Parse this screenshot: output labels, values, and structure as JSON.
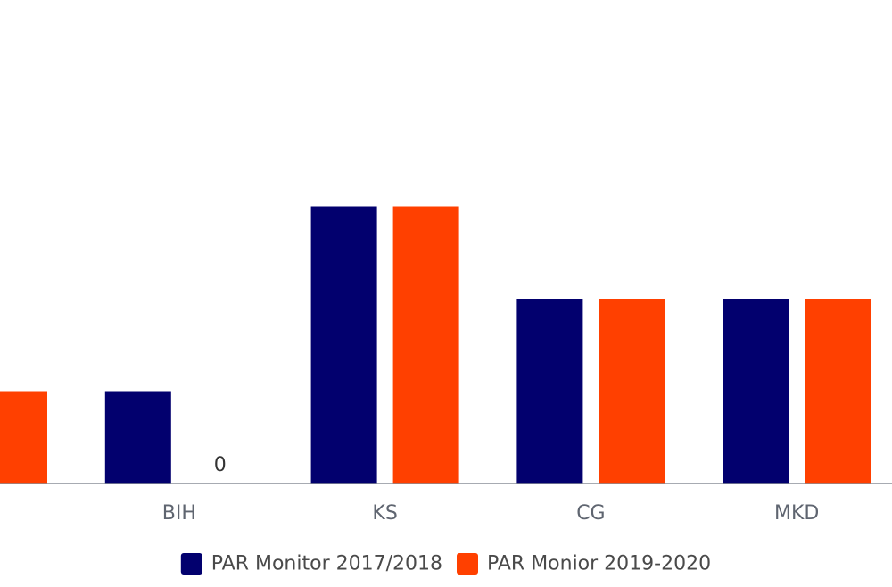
{
  "chart_data": {
    "type": "bar",
    "categories": [
      "",
      "BIH",
      "KS",
      "CG",
      "MKD"
    ],
    "series": [
      {
        "name": "PAR Monitor 2017/2018",
        "color": "#02006e",
        "values": [
          null,
          1,
          3,
          2,
          2
        ]
      },
      {
        "name": "PAR Monior 2019-2020",
        "color": "#ff4000",
        "values": [
          1,
          0,
          3,
          2,
          2
        ]
      }
    ],
    "data_labels": [
      {
        "series": 1,
        "category": 1,
        "text": "0"
      }
    ],
    "ylim": [
      0,
      5
    ],
    "grid": false,
    "legend": "bottom-center",
    "axis_color": "#8a8f99"
  }
}
